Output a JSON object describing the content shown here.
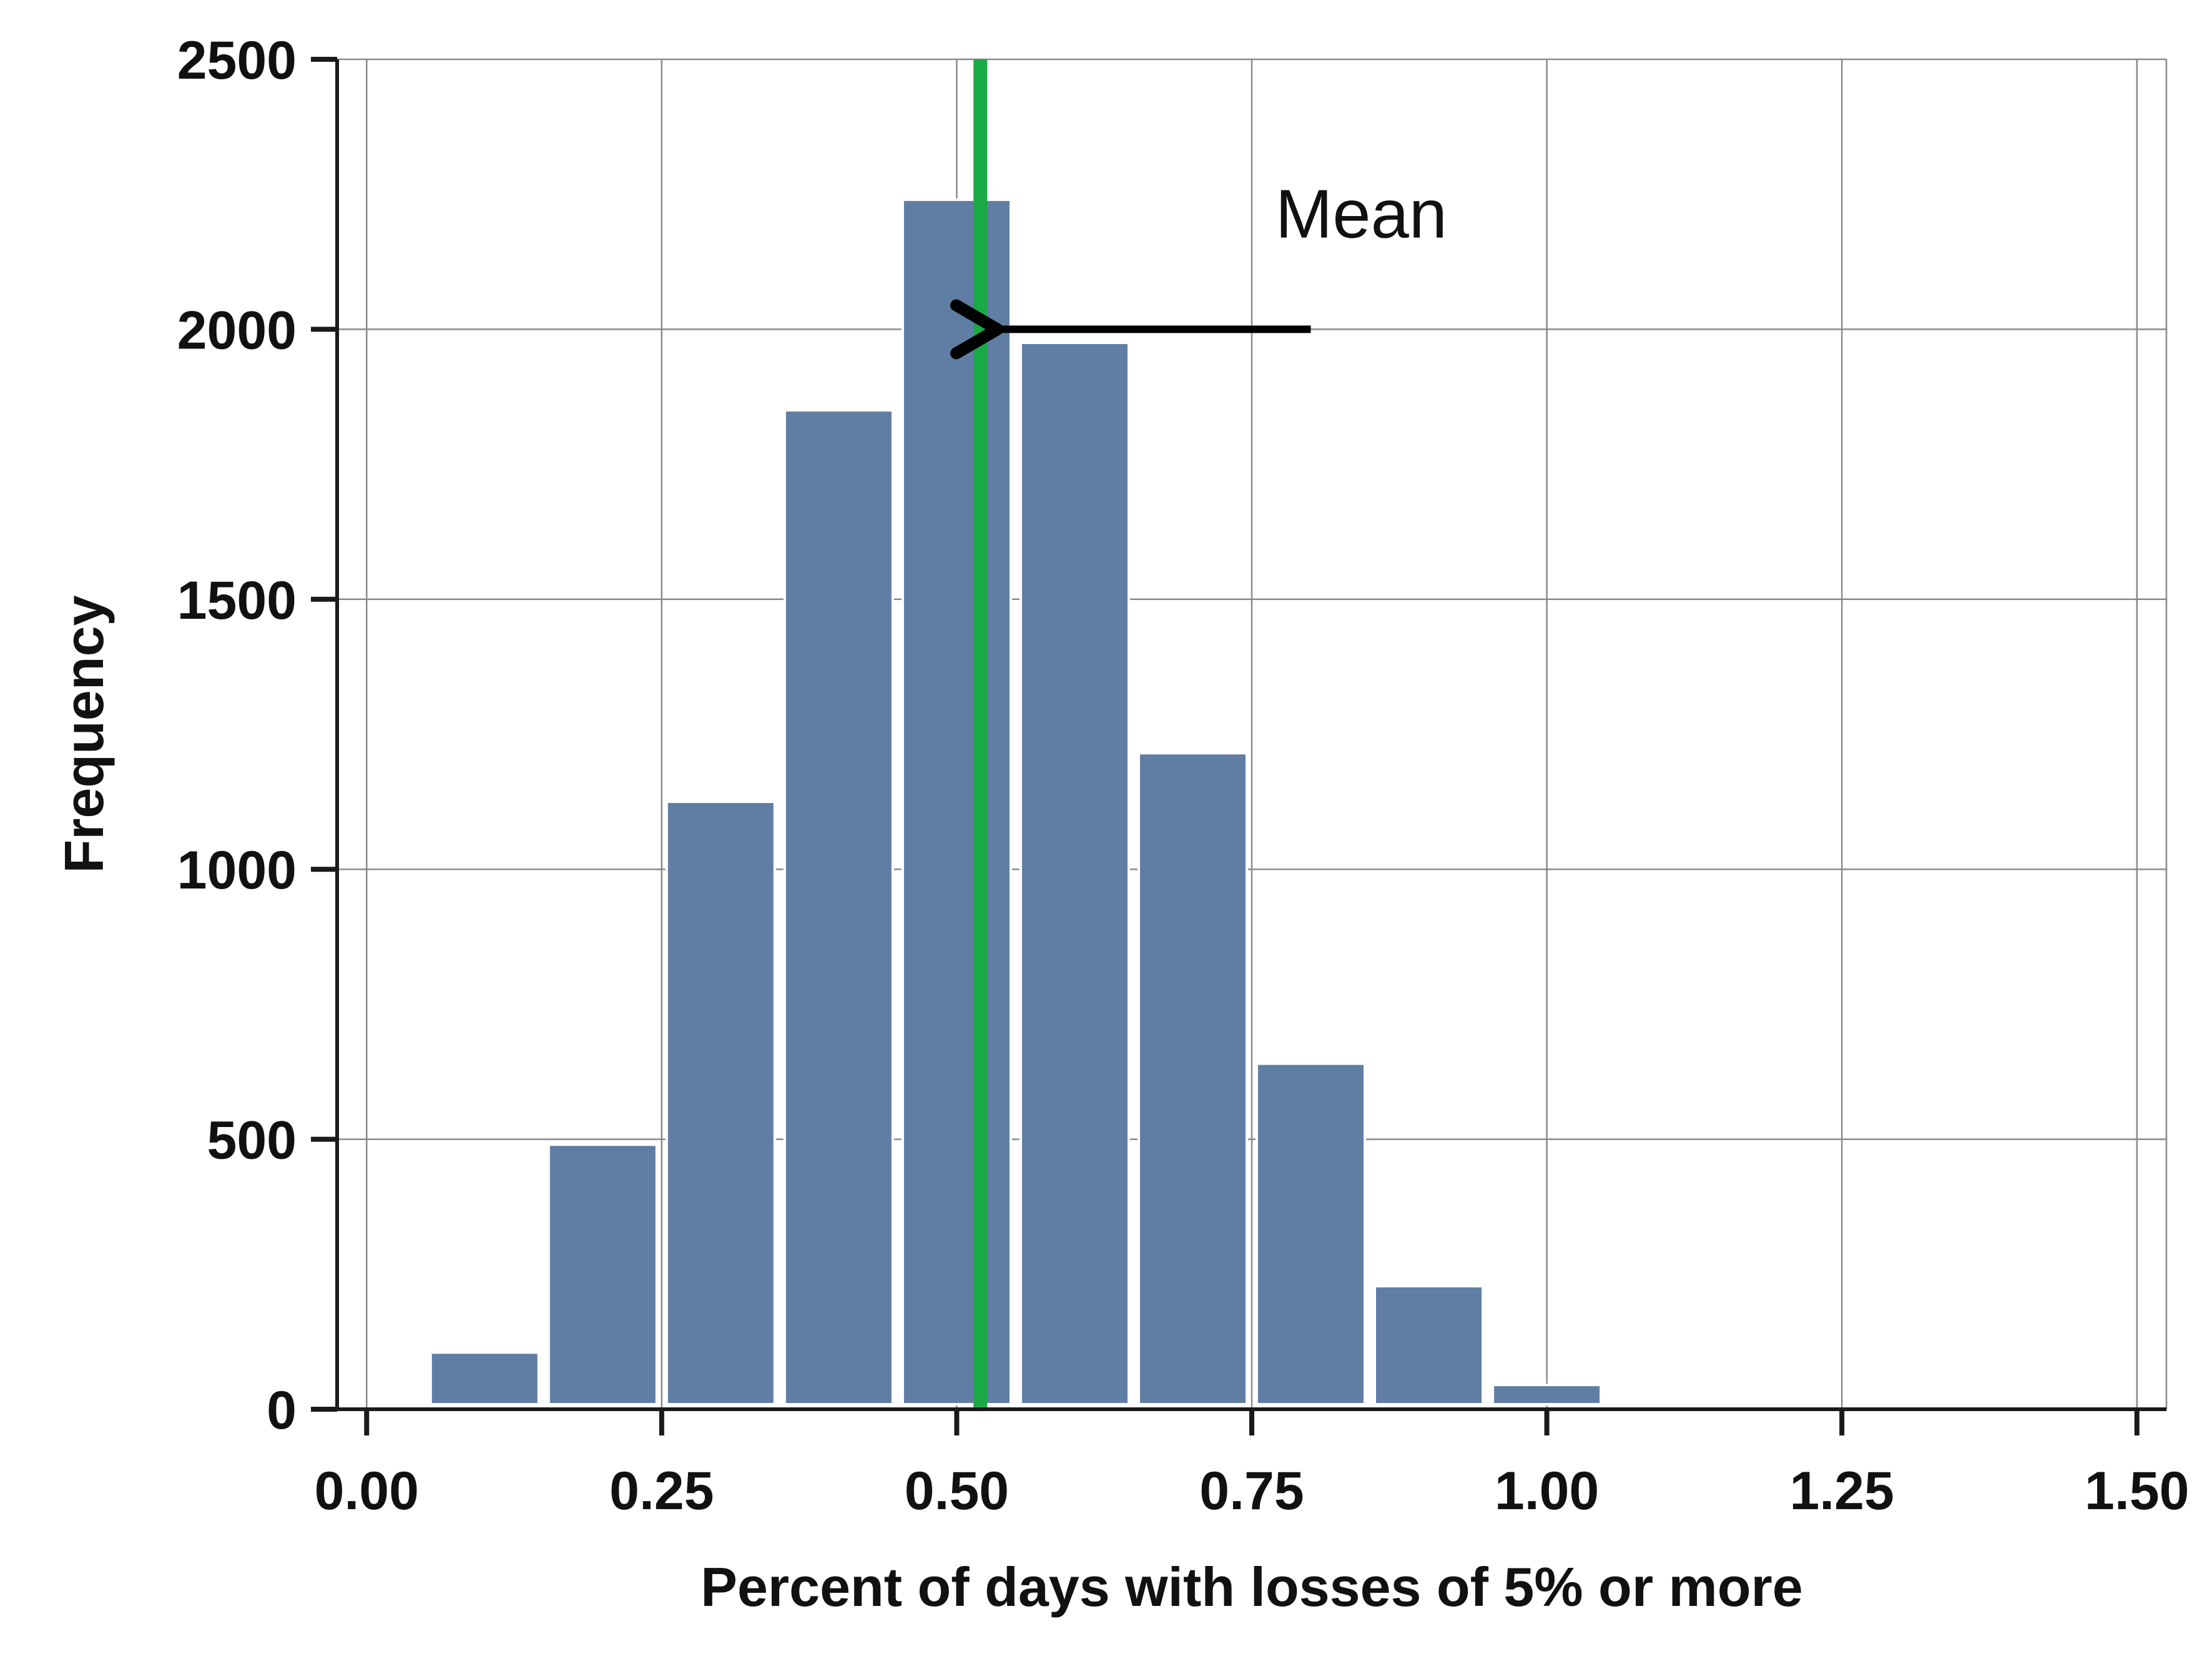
{
  "chart_data": {
    "type": "bar",
    "subtype": "histogram",
    "title": "",
    "xlabel": "Percent of days with losses of 5% or more",
    "ylabel": "Frequency",
    "xlim": [
      -0.025,
      1.525
    ],
    "ylim": [
      0,
      2500
    ],
    "grid": true,
    "x_ticks": [
      0.0,
      0.25,
      0.5,
      0.75,
      1.0,
      1.25,
      1.5
    ],
    "x_tick_labels": [
      "0.00",
      "0.25",
      "0.50",
      "0.75",
      "1.00",
      "1.25",
      "1.50"
    ],
    "y_ticks": [
      0,
      500,
      1000,
      1500,
      2000,
      2500
    ],
    "y_tick_labels": [
      "0",
      "500",
      "1000",
      "1500",
      "2000",
      "2500"
    ],
    "bin_width": 0.1,
    "bin_centers": [
      0.1,
      0.2,
      0.3,
      0.4,
      0.5,
      0.6,
      0.7,
      0.8,
      0.9,
      1.0
    ],
    "values": [
      105,
      490,
      1125,
      1850,
      2240,
      1975,
      1215,
      640,
      228,
      45
    ],
    "bar_color": "#607ea3",
    "mean": {
      "value": 0.52,
      "color": "#1aaa45",
      "label": "Mean",
      "arrow_from": [
        0.8,
        2000
      ],
      "arrow_to": [
        0.525,
        2000
      ],
      "label_at": [
        0.77,
        2170
      ]
    }
  }
}
